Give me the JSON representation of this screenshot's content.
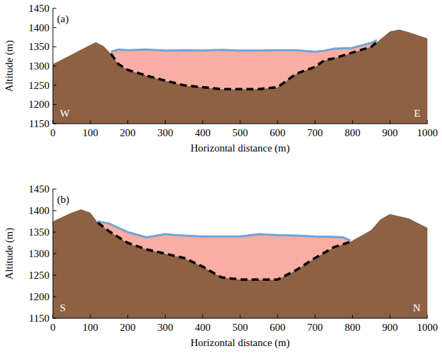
{
  "chart_data": [
    {
      "type": "area",
      "title": "(a)",
      "annotations": [
        "W",
        "E"
      ],
      "x_label": "Horizontal distance (m)",
      "y_label": "Altitude (m)",
      "xlim": [
        0,
        1000
      ],
      "ylim": [
        1150,
        1450
      ],
      "xticks": [
        0,
        100,
        200,
        300,
        400,
        500,
        600,
        700,
        800,
        900,
        1000
      ],
      "yticks": [
        1150,
        1200,
        1250,
        1300,
        1350,
        1400,
        1450
      ],
      "grid": false,
      "series": [
        {
          "type": "area",
          "color": "#8c6144",
          "x": [
            0,
            50,
            100,
            115,
            135,
            155,
            175,
            200,
            250,
            300,
            350,
            400,
            450,
            500,
            550,
            600,
            650,
            700,
            725,
            750,
            800,
            850,
            865,
            900,
            925,
            950,
            1000
          ],
          "values": [
            1305,
            1330,
            1355,
            1362,
            1352,
            1332,
            1305,
            1290,
            1275,
            1262,
            1250,
            1245,
            1240,
            1240,
            1240,
            1245,
            1280,
            1298,
            1315,
            1320,
            1335,
            1350,
            1362,
            1390,
            1395,
            1388,
            1372
          ]
        },
        {
          "type": "band",
          "color": "#f8aea2",
          "x": [
            155,
            175,
            200,
            250,
            300,
            350,
            400,
            450,
            500,
            550,
            600,
            650,
            700,
            725,
            750,
            800,
            850,
            865
          ],
          "values": [
            1337,
            1343,
            1341,
            1343,
            1340,
            1341,
            1340,
            1342,
            1340,
            1340,
            1341,
            1341,
            1337,
            1340,
            1345,
            1347,
            1360,
            1367
          ],
          "lower": [
            1332,
            1305,
            1290,
            1275,
            1262,
            1250,
            1245,
            1240,
            1240,
            1240,
            1245,
            1280,
            1298,
            1315,
            1320,
            1335,
            1350,
            1362
          ]
        },
        {
          "type": "line",
          "color": "#6fa3d9",
          "line_style": "solid",
          "x": [
            155,
            175,
            200,
            250,
            300,
            350,
            400,
            450,
            500,
            550,
            600,
            650,
            700,
            725,
            750,
            800,
            850,
            865
          ],
          "values": [
            1337,
            1343,
            1341,
            1343,
            1340,
            1341,
            1340,
            1342,
            1340,
            1340,
            1341,
            1341,
            1337,
            1340,
            1345,
            1347,
            1360,
            1367
          ]
        },
        {
          "type": "line",
          "color": "#000000",
          "line_style": "dashed",
          "x": [
            155,
            175,
            200,
            250,
            300,
            350,
            400,
            450,
            500,
            550,
            600,
            650,
            700,
            725,
            750,
            800,
            850,
            865
          ],
          "values": [
            1332,
            1305,
            1290,
            1275,
            1262,
            1250,
            1245,
            1240,
            1240,
            1240,
            1245,
            1280,
            1298,
            1315,
            1320,
            1335,
            1350,
            1362
          ]
        }
      ]
    },
    {
      "type": "area",
      "title": "(b)",
      "annotations": [
        "S",
        "N"
      ],
      "x_label": "Horizontal distance (m)",
      "y_label": "Altitude (m)",
      "xlim": [
        0,
        1000
      ],
      "ylim": [
        1150,
        1450
      ],
      "xticks": [
        0,
        100,
        200,
        300,
        400,
        500,
        600,
        700,
        800,
        900,
        1000
      ],
      "yticks": [
        1150,
        1200,
        1250,
        1300,
        1350,
        1400,
        1450
      ],
      "grid": false,
      "series": [
        {
          "type": "area",
          "color": "#8c6144",
          "x": [
            0,
            50,
            75,
            100,
            120,
            150,
            200,
            250,
            300,
            350,
            400,
            450,
            500,
            550,
            600,
            650,
            700,
            750,
            775,
            795,
            850,
            875,
            900,
            950,
            1000
          ],
          "values": [
            1375,
            1395,
            1403,
            1395,
            1372,
            1352,
            1325,
            1310,
            1300,
            1290,
            1270,
            1245,
            1240,
            1240,
            1240,
            1262,
            1290,
            1315,
            1322,
            1328,
            1355,
            1380,
            1392,
            1382,
            1360
          ]
        },
        {
          "type": "band",
          "color": "#f8aea2",
          "x": [
            120,
            150,
            200,
            250,
            300,
            350,
            400,
            450,
            500,
            550,
            600,
            650,
            700,
            750,
            775,
            795
          ],
          "values": [
            1375,
            1370,
            1350,
            1338,
            1345,
            1342,
            1340,
            1340,
            1340,
            1345,
            1343,
            1342,
            1340,
            1339,
            1338,
            1330
          ],
          "lower": [
            1372,
            1352,
            1325,
            1310,
            1300,
            1290,
            1270,
            1245,
            1240,
            1240,
            1240,
            1262,
            1290,
            1315,
            1322,
            1328
          ]
        },
        {
          "type": "line",
          "color": "#6fa3d9",
          "line_style": "solid",
          "x": [
            120,
            150,
            200,
            250,
            300,
            350,
            400,
            450,
            500,
            550,
            600,
            650,
            700,
            750,
            775,
            795
          ],
          "values": [
            1375,
            1370,
            1350,
            1338,
            1345,
            1342,
            1340,
            1340,
            1340,
            1345,
            1343,
            1342,
            1340,
            1339,
            1338,
            1330
          ]
        },
        {
          "type": "line",
          "color": "#000000",
          "line_style": "dashed",
          "x": [
            120,
            150,
            200,
            250,
            300,
            350,
            400,
            450,
            500,
            550,
            600,
            650,
            700,
            750,
            775,
            795
          ],
          "values": [
            1372,
            1352,
            1325,
            1310,
            1300,
            1290,
            1270,
            1245,
            1240,
            1240,
            1240,
            1262,
            1290,
            1315,
            1322,
            1328
          ]
        }
      ]
    }
  ]
}
